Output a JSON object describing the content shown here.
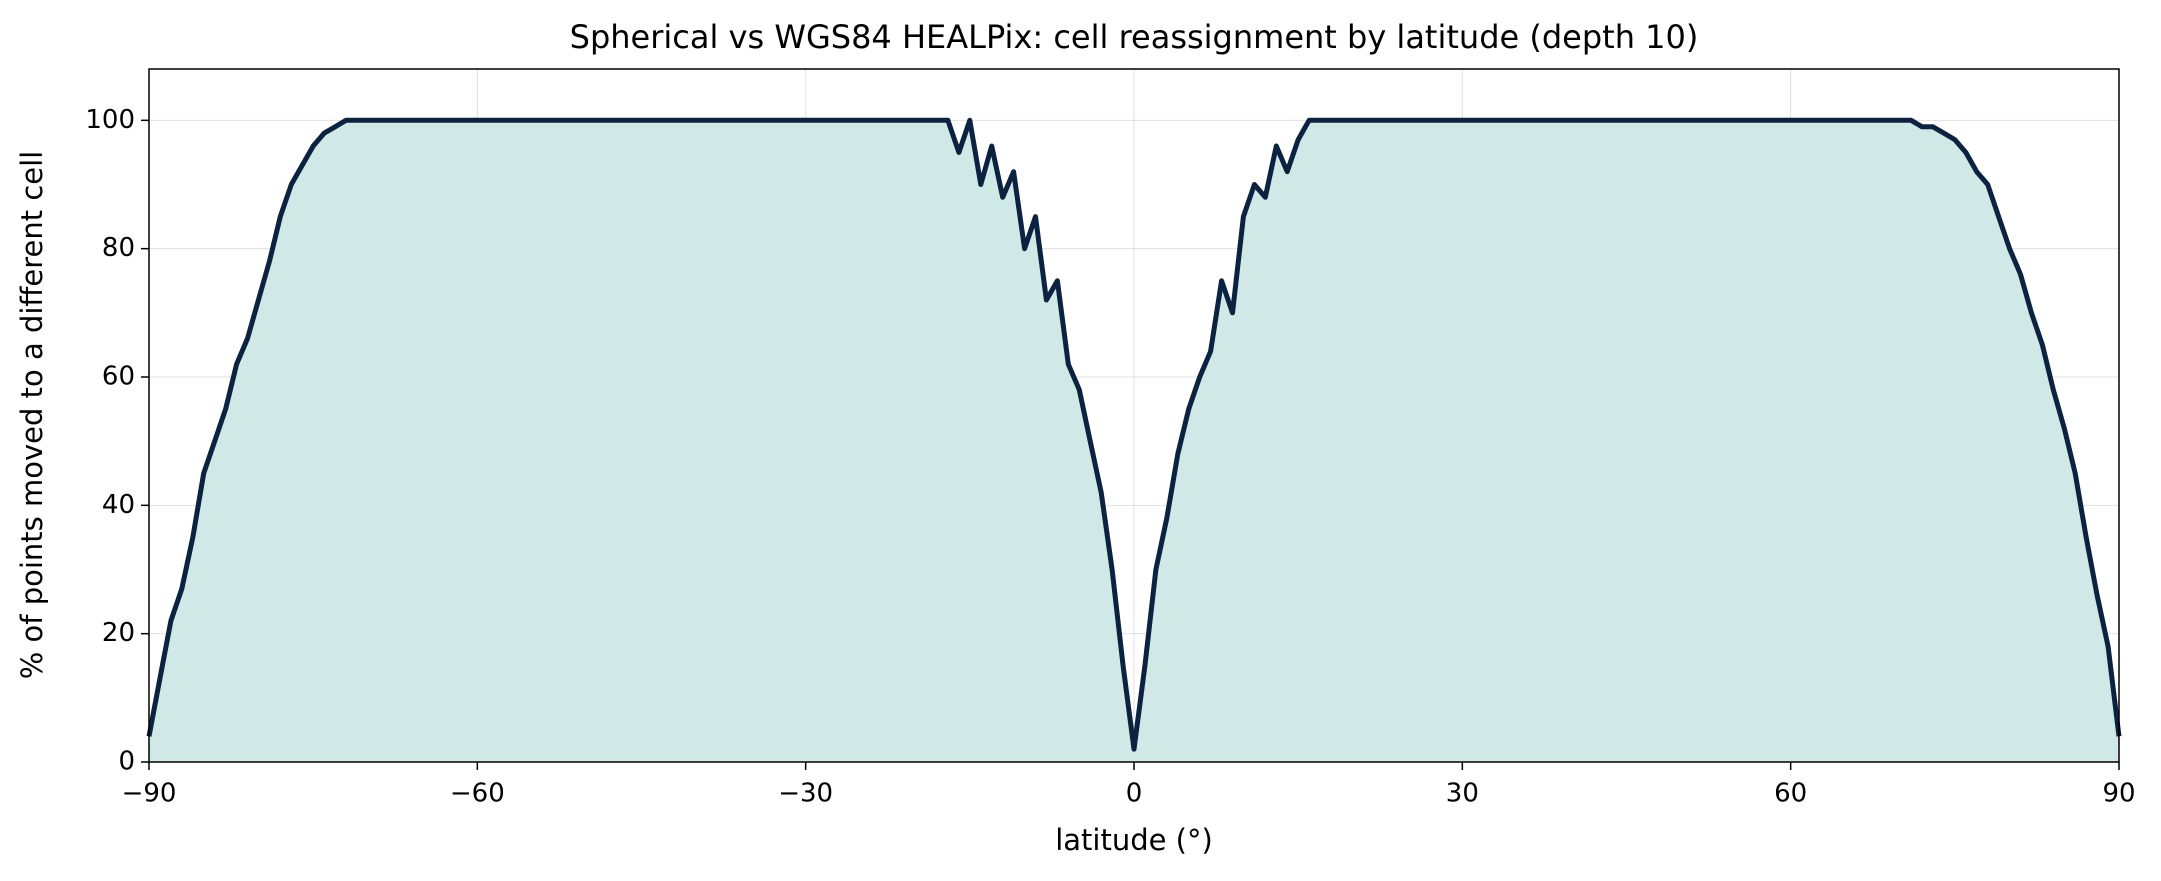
{
  "chart_data": {
    "type": "area",
    "title": "Spherical vs WGS84 HEALPix: cell reassignment by latitude (depth 10)",
    "xlabel": "latitude (°)",
    "ylabel": "% of points moved to a different cell",
    "x": [
      -90,
      -89,
      -88,
      -87,
      -86,
      -85,
      -84,
      -83,
      -82,
      -81,
      -80,
      -79,
      -78,
      -77,
      -76,
      -75,
      -74,
      -73,
      -72,
      -71,
      -70,
      -69,
      -68,
      -67,
      -66,
      -65,
      -64,
      -63,
      -62,
      -61,
      -60,
      -59,
      -58,
      -57,
      -56,
      -55,
      -54,
      -53,
      -52,
      -51,
      -50,
      -49,
      -48,
      -47,
      -46,
      -45,
      -44,
      -43,
      -42,
      -41,
      -40,
      -39,
      -38,
      -37,
      -36,
      -35,
      -34,
      -33,
      -32,
      -31,
      -30,
      -29,
      -28,
      -27,
      -26,
      -25,
      -24,
      -23,
      -22,
      -21,
      -20,
      -19,
      -18,
      -17,
      -16,
      -15,
      -14,
      -13,
      -12,
      -11,
      -10,
      -9,
      -8,
      -7,
      -6,
      -5,
      -4,
      -3,
      -2,
      -1,
      0,
      1,
      2,
      3,
      4,
      5,
      6,
      7,
      8,
      9,
      10,
      11,
      12,
      13,
      14,
      15,
      16,
      17,
      18,
      19,
      20,
      21,
      22,
      23,
      24,
      25,
      26,
      27,
      28,
      29,
      30,
      31,
      32,
      33,
      34,
      35,
      36,
      37,
      38,
      39,
      40,
      41,
      42,
      43,
      44,
      45,
      46,
      47,
      48,
      49,
      50,
      51,
      52,
      53,
      54,
      55,
      56,
      57,
      58,
      59,
      60,
      61,
      62,
      63,
      64,
      65,
      66,
      67,
      68,
      69,
      70,
      71,
      72,
      73,
      74,
      75,
      76,
      77,
      78,
      79,
      80,
      81,
      82,
      83,
      84,
      85,
      86,
      87,
      88,
      89,
      90
    ],
    "series": [
      {
        "color": "#0b2340",
        "fill": "#d0e8e6",
        "values": [
          4,
          13,
          22,
          27,
          35,
          45,
          50,
          55,
          62,
          66,
          72,
          78,
          85,
          90,
          93,
          96,
          98,
          99,
          100,
          100,
          100,
          100,
          100,
          100,
          100,
          100,
          100,
          100,
          100,
          100,
          100,
          100,
          100,
          100,
          100,
          100,
          100,
          100,
          100,
          100,
          100,
          100,
          100,
          100,
          100,
          100,
          100,
          100,
          100,
          100,
          100,
          100,
          100,
          100,
          100,
          100,
          100,
          100,
          100,
          100,
          100,
          100,
          100,
          100,
          100,
          100,
          100,
          100,
          100,
          100,
          100,
          100,
          100,
          100,
          95,
          100,
          90,
          96,
          88,
          92,
          80,
          85,
          72,
          75,
          62,
          58,
          50,
          42,
          30,
          15,
          2,
          15,
          30,
          38,
          48,
          55,
          60,
          64,
          75,
          70,
          85,
          90,
          88,
          96,
          92,
          97,
          100,
          100,
          100,
          100,
          100,
          100,
          100,
          100,
          100,
          100,
          100,
          100,
          100,
          100,
          100,
          100,
          100,
          100,
          100,
          100,
          100,
          100,
          100,
          100,
          100,
          100,
          100,
          100,
          100,
          100,
          100,
          100,
          100,
          100,
          100,
          100,
          100,
          100,
          100,
          100,
          100,
          100,
          100,
          100,
          100,
          100,
          100,
          100,
          100,
          100,
          100,
          100,
          100,
          100,
          100,
          100,
          99,
          99,
          98,
          97,
          95,
          92,
          90,
          85,
          80,
          76,
          70,
          65,
          58,
          52,
          45,
          35,
          26,
          18,
          4
        ]
      }
    ],
    "xlim": [
      -90,
      90
    ],
    "xticks": [
      {
        "value": -90,
        "label": "−90"
      },
      {
        "value": -60,
        "label": "−60"
      },
      {
        "value": -30,
        "label": "−30"
      },
      0,
      30,
      60,
      90
    ],
    "ylim": [
      0,
      108
    ],
    "yticks": [
      0,
      20,
      40,
      60,
      80,
      100
    ],
    "grid": true
  }
}
